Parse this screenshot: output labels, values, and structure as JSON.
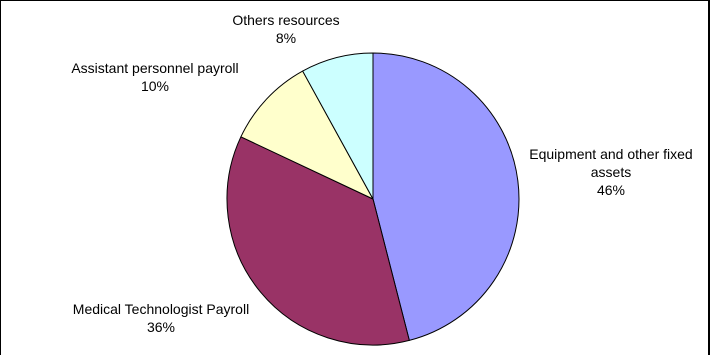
{
  "chart_data": {
    "type": "pie",
    "title": "",
    "start_angle_deg": 0,
    "direction": "clockwise",
    "slices": [
      {
        "label": "Equipment and other fixed assets",
        "label_lines": [
          "Equipment and other fixed",
          "assets"
        ],
        "value": 46,
        "percent_label": "46%",
        "color": "#9999FF"
      },
      {
        "label": "Medical Technologist Payroll",
        "label_lines": [
          "Medical Technologist Payroll"
        ],
        "value": 36,
        "percent_label": "36%",
        "color": "#993366"
      },
      {
        "label": "Assistant personnel payroll",
        "label_lines": [
          "Assistant personnel payroll"
        ],
        "value": 10,
        "percent_label": "10%",
        "color": "#FFFFCC"
      },
      {
        "label": "Others resources",
        "label_lines": [
          "Others resources"
        ],
        "value": 8,
        "percent_label": "8%",
        "color": "#CCFFFF"
      }
    ]
  }
}
